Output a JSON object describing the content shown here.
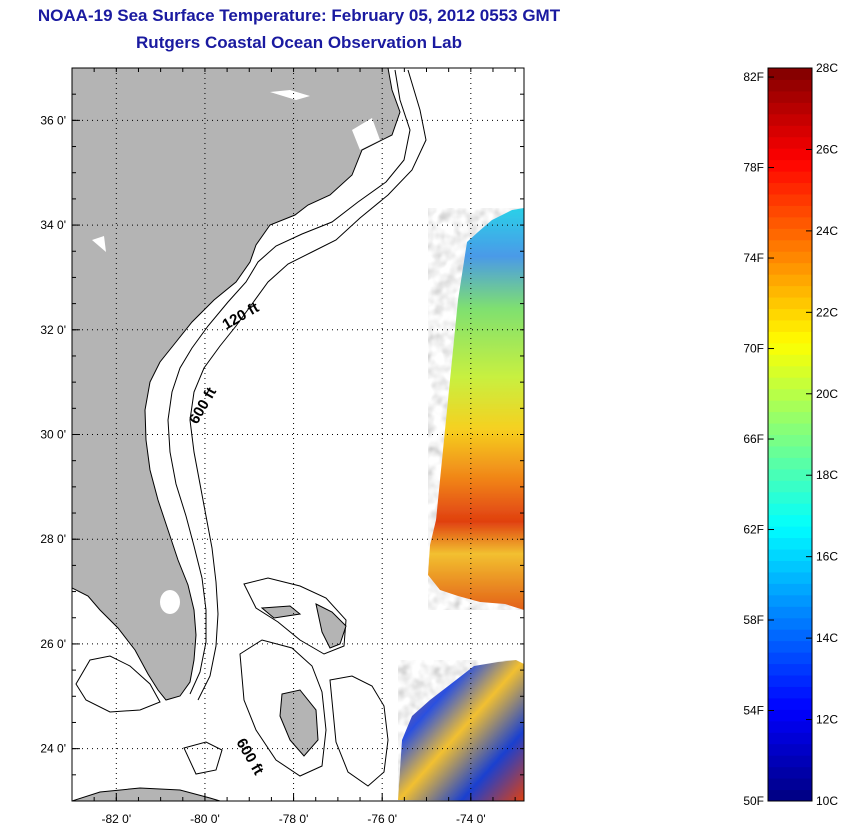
{
  "title": "NOAA-19 Sea Surface Temperature:  February 05, 2012 0553 GMT",
  "subtitle": "Rutgers Coastal Ocean Observation Lab",
  "map": {
    "lon_range": [
      -83.0,
      -72.8
    ],
    "lat_range": [
      23.0,
      37.0
    ],
    "lon_ticks": [
      {
        "value": -82,
        "label": "-82 0'"
      },
      {
        "value": -80,
        "label": "-80 0'"
      },
      {
        "value": -78,
        "label": "-78 0'"
      },
      {
        "value": -76,
        "label": "-76 0'"
      },
      {
        "value": -74,
        "label": "-74 0'"
      }
    ],
    "lat_ticks": [
      {
        "value": 24,
        "label": "24 0'"
      },
      {
        "value": 26,
        "label": "26 0'"
      },
      {
        "value": 28,
        "label": "28 0'"
      },
      {
        "value": 30,
        "label": "30 0'"
      },
      {
        "value": 32,
        "label": "32 0'"
      },
      {
        "value": 34,
        "label": "34 0'"
      },
      {
        "value": 36,
        "label": "36 0'"
      }
    ],
    "grid": true,
    "land_color": "#b4b4b4",
    "contour_labels": {
      "c120": "120 ft",
      "c600_north": "600 ft",
      "c600_south": "600 ft"
    }
  },
  "colorbar": {
    "min_c": 10,
    "max_c": 28,
    "colormap": "jet",
    "celsius_ticks": [
      {
        "value": 10,
        "label": "10C"
      },
      {
        "value": 12,
        "label": "12C"
      },
      {
        "value": 14,
        "label": "14C"
      },
      {
        "value": 16,
        "label": "16C"
      },
      {
        "value": 18,
        "label": "18C"
      },
      {
        "value": 20,
        "label": "20C"
      },
      {
        "value": 22,
        "label": "22C"
      },
      {
        "value": 24,
        "label": "24C"
      },
      {
        "value": 26,
        "label": "26C"
      },
      {
        "value": 28,
        "label": "28C"
      }
    ],
    "fahrenheit_ticks": [
      {
        "value": 50,
        "label": "50F"
      },
      {
        "value": 54,
        "label": "54F"
      },
      {
        "value": 58,
        "label": "58F"
      },
      {
        "value": 62,
        "label": "62F"
      },
      {
        "value": 66,
        "label": "66F"
      },
      {
        "value": 70,
        "label": "70F"
      },
      {
        "value": 74,
        "label": "74F"
      },
      {
        "value": 78,
        "label": "78F"
      },
      {
        "value": 82,
        "label": "82F"
      }
    ]
  }
}
